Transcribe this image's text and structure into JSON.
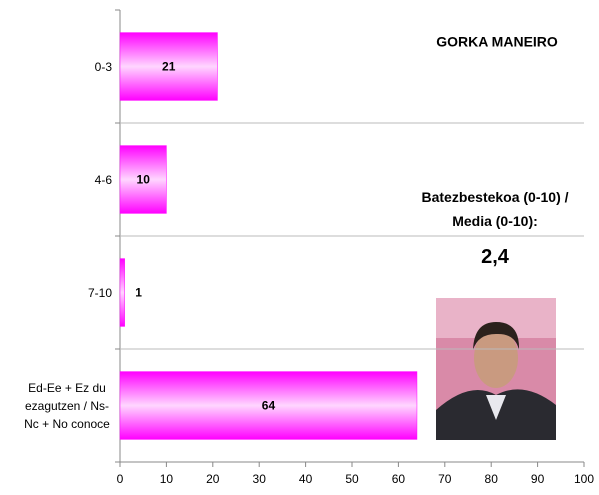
{
  "chart_data": {
    "type": "bar",
    "orientation": "horizontal",
    "title": "GORKA MANEIRO",
    "annotations": [
      "Batezbestekoa (0-10) / Media (0-10):",
      "2,4"
    ],
    "categories": [
      "0-3",
      "4-6",
      "7-10",
      "Ed-Ee + Ez du ezagutzen / Ns-Nc + No conoce"
    ],
    "values": [
      21,
      10,
      1,
      64
    ],
    "color": "#ff00ff",
    "xlim": [
      0,
      100
    ],
    "xticks": [
      0,
      10,
      20,
      30,
      40,
      50,
      60,
      70,
      80,
      90,
      100
    ]
  }
}
